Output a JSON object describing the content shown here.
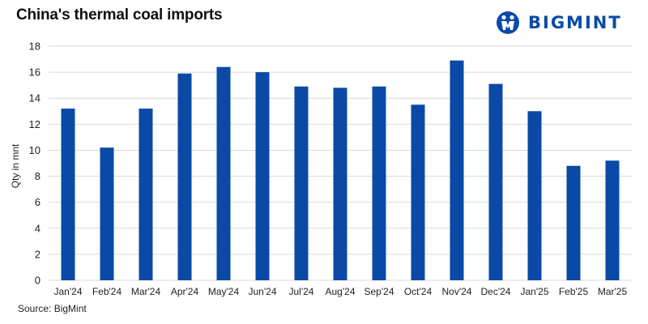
{
  "header": {
    "title": "China's thermal coal imports"
  },
  "brand": {
    "name": "BIGMINT",
    "color": "#0a4aa6",
    "logo_icon": "bigmint-logo-icon"
  },
  "footer": {
    "source": "Source: BigMint"
  },
  "chart_data": {
    "type": "bar",
    "title": "China's thermal coal imports",
    "xlabel": "",
    "ylabel": "Qty in mnt",
    "ylim": [
      0,
      18
    ],
    "yticks": [
      0,
      2,
      4,
      6,
      8,
      10,
      12,
      14,
      16,
      18
    ],
    "grid": true,
    "bar_color": "#0a4aa6",
    "categories": [
      "Jan'24",
      "Feb'24",
      "Mar'24",
      "Apr'24",
      "May'24",
      "Jun'24",
      "Jul'24",
      "Aug'24",
      "Sep'24",
      "Oct'24",
      "Nov'24",
      "Dec'24",
      "Jan'25",
      "Feb'25",
      "Mar'25"
    ],
    "values": [
      13.2,
      10.2,
      13.2,
      15.9,
      16.4,
      16.0,
      14.9,
      14.8,
      14.9,
      13.5,
      16.9,
      15.1,
      13.0,
      8.8,
      9.2
    ]
  }
}
